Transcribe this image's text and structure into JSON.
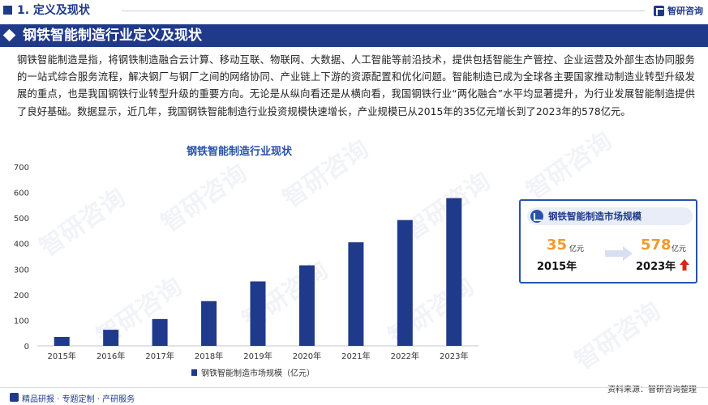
{
  "header": {
    "section_number_title": "1. 定义及现状",
    "brand": "智研咨询"
  },
  "section": {
    "title": "钢铁智能制造行业定义及现状"
  },
  "intro": "钢铁智能制造是指，将钢铁制造融合云计算、移动互联、物联网、大数据、人工智能等前沿技术，提供包括智能生产管控、企业运营及外部生态协同服务的一站式综合服务流程，解决钢厂与钢厂之间的网络协同、产业链上下游的资源配置和优化问题。智能制造已成为全球各主要国家推动制造业转型升级发展的重点，也是我国钢铁行业转型升级的重要方向。无论是从纵向看还是从横向看，我国钢铁行业“两化融合”水平均显著提升，为行业发展智能制造提供了良好基础。数据显示，近几年，我国钢铁智能制造行业投资规模快速增长，产业规模已从2015年的35亿元增长到了2023年的578亿元。",
  "chart_data": {
    "type": "bar",
    "title": "钢铁智能制造行业现状",
    "categories": [
      "2015年",
      "2016年",
      "2017年",
      "2018年",
      "2019年",
      "2020年",
      "2021年",
      "2022年",
      "2023年"
    ],
    "series": [
      {
        "name": "钢铁智能制造市场规模（亿元）",
        "values": [
          35,
          63,
          105,
          175,
          252,
          315,
          405,
          492,
          578
        ]
      }
    ],
    "ylim": [
      0,
      700
    ],
    "yticks": [
      0,
      100,
      200,
      300,
      400,
      500,
      600,
      700
    ],
    "grid": false,
    "legend": "bottom",
    "bar_color": "#1f3a8a"
  },
  "card": {
    "title": "钢铁智能制造市场规模",
    "start_value": "35",
    "start_unit": "亿元",
    "start_year": "2015年",
    "end_value": "578",
    "end_unit": "亿元",
    "end_year": "2023年"
  },
  "footer": {
    "source": "资料来源：智研咨询整理",
    "tagline": "精品研报 · 专题定制 · 产研服务"
  },
  "colors": {
    "primary": "#1f3a8a",
    "accent": "#f39a2b",
    "up_arrow": "#d9251c"
  },
  "watermark": "智研咨询"
}
